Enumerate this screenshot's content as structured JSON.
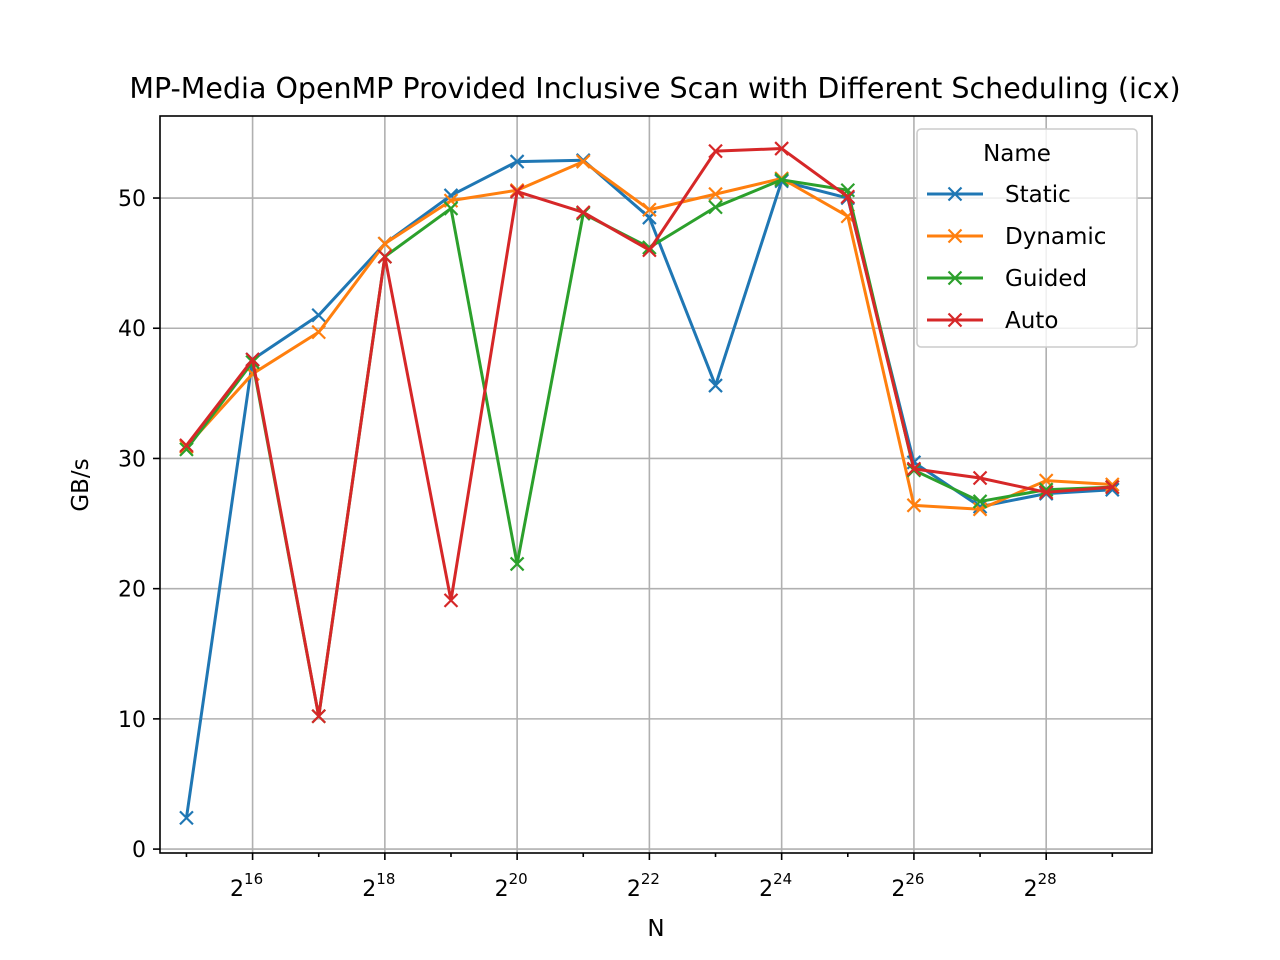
{
  "chart_data": {
    "type": "line",
    "title": "MP-Media OpenMP Provided Inclusive Scan with Different Scheduling (icx)",
    "xlabel": "N",
    "ylabel": "GB/s",
    "x_scale": "log2",
    "x": [
      32768,
      65536,
      131072,
      262144,
      524288,
      1048576,
      2097152,
      4194304,
      8388608,
      16777216,
      33554432,
      67108864,
      134217728,
      268435456,
      536870912
    ],
    "x_ticks": [
      {
        "base": "2",
        "exp": "16",
        "value": 65536
      },
      {
        "base": "2",
        "exp": "18",
        "value": 262144
      },
      {
        "base": "2",
        "exp": "20",
        "value": 1048576
      },
      {
        "base": "2",
        "exp": "22",
        "value": 4194304
      },
      {
        "base": "2",
        "exp": "24",
        "value": 16777216
      },
      {
        "base": "2",
        "exp": "26",
        "value": 67108864
      },
      {
        "base": "2",
        "exp": "28",
        "value": 268435456
      }
    ],
    "y_ticks": [
      "0",
      "10",
      "20",
      "30",
      "40",
      "50"
    ],
    "ylim": [
      -0.3,
      56.3
    ],
    "grid": true,
    "legend": {
      "title": "Name",
      "position": "top-right"
    },
    "marker": "x",
    "series": [
      {
        "name": "Static",
        "color": "#1f77b4",
        "values": [
          2.4,
          37.6,
          41.0,
          46.5,
          50.2,
          52.8,
          52.9,
          48.5,
          35.6,
          51.3,
          50.0,
          29.7,
          26.3,
          27.3,
          27.6
        ]
      },
      {
        "name": "Dynamic",
        "color": "#ff7f0e",
        "values": [
          30.9,
          36.5,
          39.7,
          46.5,
          49.8,
          50.6,
          52.8,
          49.1,
          50.3,
          51.5,
          48.6,
          26.4,
          26.1,
          28.3,
          28.0
        ]
      },
      {
        "name": "Guided",
        "color": "#2ca02c",
        "values": [
          30.7,
          37.4,
          10.2,
          45.5,
          49.2,
          21.9,
          48.8,
          46.2,
          49.3,
          51.4,
          50.6,
          29.1,
          26.7,
          27.6,
          27.8
        ]
      },
      {
        "name": "Auto",
        "color": "#d62728",
        "values": [
          31.0,
          37.6,
          10.2,
          45.5,
          19.1,
          50.5,
          48.9,
          46.0,
          53.6,
          53.8,
          50.1,
          29.2,
          28.5,
          27.4,
          27.8
        ]
      }
    ]
  }
}
